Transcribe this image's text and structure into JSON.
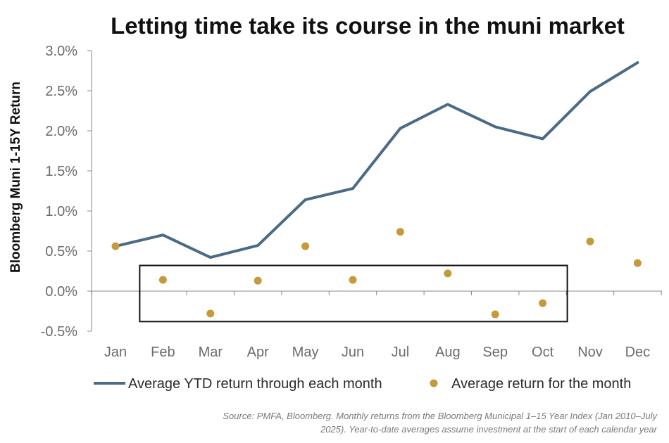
{
  "chart_data": {
    "type": "line",
    "title": "Letting time take its course in the muni market",
    "ylabel": "Bloomberg Muni 1-15Y Return",
    "xlabel": "",
    "categories": [
      "Jan",
      "Feb",
      "Mar",
      "Apr",
      "May",
      "Jun",
      "Jul",
      "Aug",
      "Sep",
      "Oct",
      "Nov",
      "Dec"
    ],
    "y_ticks": [
      "3.0%",
      "2.5%",
      "2.0%",
      "1.5%",
      "1.0%",
      "0.5%",
      "0.0%",
      "-0.5%"
    ],
    "ylim": [
      -0.5,
      3.0
    ],
    "series": [
      {
        "name": "Average YTD return through each month",
        "style": "line",
        "color": "#4a6a86",
        "values": [
          0.56,
          0.7,
          0.42,
          0.57,
          1.14,
          1.28,
          2.03,
          2.33,
          2.05,
          1.9,
          2.49,
          2.85
        ]
      },
      {
        "name": "Average return for the month",
        "style": "dots",
        "color": "#c49a3a",
        "values": [
          0.56,
          0.14,
          -0.28,
          0.13,
          0.56,
          0.14,
          0.74,
          0.22,
          -0.29,
          -0.15,
          0.62,
          0.35
        ]
      }
    ],
    "highlight_box": {
      "from_category": "Feb",
      "to_category": "Oct",
      "y_from": -0.38,
      "y_to": 0.32
    },
    "grid": false,
    "legend": "bottom",
    "source": "Source: PMFA, Bloomberg. Monthly returns from the Bloomberg Municipal 1–15 Year Index (Jan 2010–July 2025). Year-to-date averages assume investment at the start of each calendar year",
    "source_lines": [
      "Source: PMFA, Bloomberg. Monthly returns from the Bloomberg Municipal 1–15 Year Index (Jan 2010–July",
      "2025). Year-to-date averages assume investment at the start of each calendar year"
    ]
  }
}
